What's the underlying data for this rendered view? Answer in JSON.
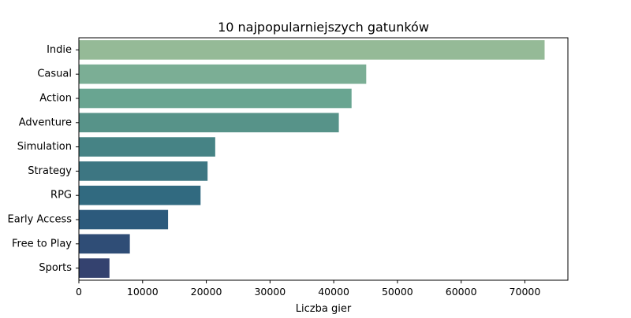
{
  "chart_data": {
    "type": "bar",
    "orientation": "horizontal",
    "title": "10 najpopularniejszych gatunków",
    "xlabel": "Liczba gier",
    "ylabel": "",
    "categories": [
      "Indie",
      "Casual",
      "Action",
      "Adventure",
      "Simulation",
      "Strategy",
      "RPG",
      "Early Access",
      "Free to Play",
      "Sports"
    ],
    "values": [
      73100,
      45100,
      42800,
      40800,
      21400,
      20200,
      19100,
      14000,
      8000,
      4800
    ],
    "colors": [
      "#95ba97",
      "#7bae95",
      "#69a591",
      "#579389",
      "#468385",
      "#3d7682",
      "#316a80",
      "#2c5a7c",
      "#2f4d76",
      "#34426f"
    ],
    "xlim": [
      0,
      76755
    ],
    "xticks": [
      0,
      10000,
      20000,
      30000,
      40000,
      50000,
      60000,
      70000
    ],
    "grid": false,
    "legend": "none"
  }
}
